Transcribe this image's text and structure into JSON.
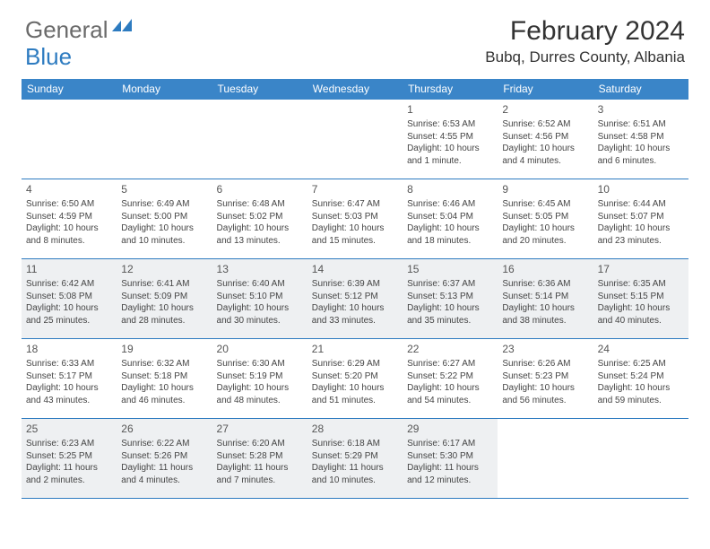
{
  "logo": {
    "text1": "General",
    "text2": "Blue",
    "color_general": "#6a6a6a",
    "color_blue": "#2d7bc0"
  },
  "header": {
    "title": "February 2024",
    "location": "Bubq, Durres County, Albania"
  },
  "colors": {
    "header_bg": "#3a85c8",
    "border": "#2d7bc0",
    "shaded": "#eef0f2",
    "text": "#444"
  },
  "dayNames": [
    "Sunday",
    "Monday",
    "Tuesday",
    "Wednesday",
    "Thursday",
    "Friday",
    "Saturday"
  ],
  "weeks": [
    [
      {
        "day": "",
        "sunrise": "",
        "sunset": "",
        "daylight1": "",
        "daylight2": ""
      },
      {
        "day": "",
        "sunrise": "",
        "sunset": "",
        "daylight1": "",
        "daylight2": ""
      },
      {
        "day": "",
        "sunrise": "",
        "sunset": "",
        "daylight1": "",
        "daylight2": ""
      },
      {
        "day": "",
        "sunrise": "",
        "sunset": "",
        "daylight1": "",
        "daylight2": ""
      },
      {
        "day": "1",
        "sunrise": "Sunrise: 6:53 AM",
        "sunset": "Sunset: 4:55 PM",
        "daylight1": "Daylight: 10 hours",
        "daylight2": "and 1 minute."
      },
      {
        "day": "2",
        "sunrise": "Sunrise: 6:52 AM",
        "sunset": "Sunset: 4:56 PM",
        "daylight1": "Daylight: 10 hours",
        "daylight2": "and 4 minutes."
      },
      {
        "day": "3",
        "sunrise": "Sunrise: 6:51 AM",
        "sunset": "Sunset: 4:58 PM",
        "daylight1": "Daylight: 10 hours",
        "daylight2": "and 6 minutes."
      }
    ],
    [
      {
        "day": "4",
        "sunrise": "Sunrise: 6:50 AM",
        "sunset": "Sunset: 4:59 PM",
        "daylight1": "Daylight: 10 hours",
        "daylight2": "and 8 minutes."
      },
      {
        "day": "5",
        "sunrise": "Sunrise: 6:49 AM",
        "sunset": "Sunset: 5:00 PM",
        "daylight1": "Daylight: 10 hours",
        "daylight2": "and 10 minutes."
      },
      {
        "day": "6",
        "sunrise": "Sunrise: 6:48 AM",
        "sunset": "Sunset: 5:02 PM",
        "daylight1": "Daylight: 10 hours",
        "daylight2": "and 13 minutes."
      },
      {
        "day": "7",
        "sunrise": "Sunrise: 6:47 AM",
        "sunset": "Sunset: 5:03 PM",
        "daylight1": "Daylight: 10 hours",
        "daylight2": "and 15 minutes."
      },
      {
        "day": "8",
        "sunrise": "Sunrise: 6:46 AM",
        "sunset": "Sunset: 5:04 PM",
        "daylight1": "Daylight: 10 hours",
        "daylight2": "and 18 minutes."
      },
      {
        "day": "9",
        "sunrise": "Sunrise: 6:45 AM",
        "sunset": "Sunset: 5:05 PM",
        "daylight1": "Daylight: 10 hours",
        "daylight2": "and 20 minutes."
      },
      {
        "day": "10",
        "sunrise": "Sunrise: 6:44 AM",
        "sunset": "Sunset: 5:07 PM",
        "daylight1": "Daylight: 10 hours",
        "daylight2": "and 23 minutes."
      }
    ],
    [
      {
        "day": "11",
        "sunrise": "Sunrise: 6:42 AM",
        "sunset": "Sunset: 5:08 PM",
        "daylight1": "Daylight: 10 hours",
        "daylight2": "and 25 minutes."
      },
      {
        "day": "12",
        "sunrise": "Sunrise: 6:41 AM",
        "sunset": "Sunset: 5:09 PM",
        "daylight1": "Daylight: 10 hours",
        "daylight2": "and 28 minutes."
      },
      {
        "day": "13",
        "sunrise": "Sunrise: 6:40 AM",
        "sunset": "Sunset: 5:10 PM",
        "daylight1": "Daylight: 10 hours",
        "daylight2": "and 30 minutes."
      },
      {
        "day": "14",
        "sunrise": "Sunrise: 6:39 AM",
        "sunset": "Sunset: 5:12 PM",
        "daylight1": "Daylight: 10 hours",
        "daylight2": "and 33 minutes."
      },
      {
        "day": "15",
        "sunrise": "Sunrise: 6:37 AM",
        "sunset": "Sunset: 5:13 PM",
        "daylight1": "Daylight: 10 hours",
        "daylight2": "and 35 minutes."
      },
      {
        "day": "16",
        "sunrise": "Sunrise: 6:36 AM",
        "sunset": "Sunset: 5:14 PM",
        "daylight1": "Daylight: 10 hours",
        "daylight2": "and 38 minutes."
      },
      {
        "day": "17",
        "sunrise": "Sunrise: 6:35 AM",
        "sunset": "Sunset: 5:15 PM",
        "daylight1": "Daylight: 10 hours",
        "daylight2": "and 40 minutes."
      }
    ],
    [
      {
        "day": "18",
        "sunrise": "Sunrise: 6:33 AM",
        "sunset": "Sunset: 5:17 PM",
        "daylight1": "Daylight: 10 hours",
        "daylight2": "and 43 minutes."
      },
      {
        "day": "19",
        "sunrise": "Sunrise: 6:32 AM",
        "sunset": "Sunset: 5:18 PM",
        "daylight1": "Daylight: 10 hours",
        "daylight2": "and 46 minutes."
      },
      {
        "day": "20",
        "sunrise": "Sunrise: 6:30 AM",
        "sunset": "Sunset: 5:19 PM",
        "daylight1": "Daylight: 10 hours",
        "daylight2": "and 48 minutes."
      },
      {
        "day": "21",
        "sunrise": "Sunrise: 6:29 AM",
        "sunset": "Sunset: 5:20 PM",
        "daylight1": "Daylight: 10 hours",
        "daylight2": "and 51 minutes."
      },
      {
        "day": "22",
        "sunrise": "Sunrise: 6:27 AM",
        "sunset": "Sunset: 5:22 PM",
        "daylight1": "Daylight: 10 hours",
        "daylight2": "and 54 minutes."
      },
      {
        "day": "23",
        "sunrise": "Sunrise: 6:26 AM",
        "sunset": "Sunset: 5:23 PM",
        "daylight1": "Daylight: 10 hours",
        "daylight2": "and 56 minutes."
      },
      {
        "day": "24",
        "sunrise": "Sunrise: 6:25 AM",
        "sunset": "Sunset: 5:24 PM",
        "daylight1": "Daylight: 10 hours",
        "daylight2": "and 59 minutes."
      }
    ],
    [
      {
        "day": "25",
        "sunrise": "Sunrise: 6:23 AM",
        "sunset": "Sunset: 5:25 PM",
        "daylight1": "Daylight: 11 hours",
        "daylight2": "and 2 minutes."
      },
      {
        "day": "26",
        "sunrise": "Sunrise: 6:22 AM",
        "sunset": "Sunset: 5:26 PM",
        "daylight1": "Daylight: 11 hours",
        "daylight2": "and 4 minutes."
      },
      {
        "day": "27",
        "sunrise": "Sunrise: 6:20 AM",
        "sunset": "Sunset: 5:28 PM",
        "daylight1": "Daylight: 11 hours",
        "daylight2": "and 7 minutes."
      },
      {
        "day": "28",
        "sunrise": "Sunrise: 6:18 AM",
        "sunset": "Sunset: 5:29 PM",
        "daylight1": "Daylight: 11 hours",
        "daylight2": "and 10 minutes."
      },
      {
        "day": "29",
        "sunrise": "Sunrise: 6:17 AM",
        "sunset": "Sunset: 5:30 PM",
        "daylight1": "Daylight: 11 hours",
        "daylight2": "and 12 minutes."
      },
      {
        "day": "",
        "sunrise": "",
        "sunset": "",
        "daylight1": "",
        "daylight2": ""
      },
      {
        "day": "",
        "sunrise": "",
        "sunset": "",
        "daylight1": "",
        "daylight2": ""
      }
    ]
  ],
  "shadedWeeks": [
    2,
    4
  ]
}
